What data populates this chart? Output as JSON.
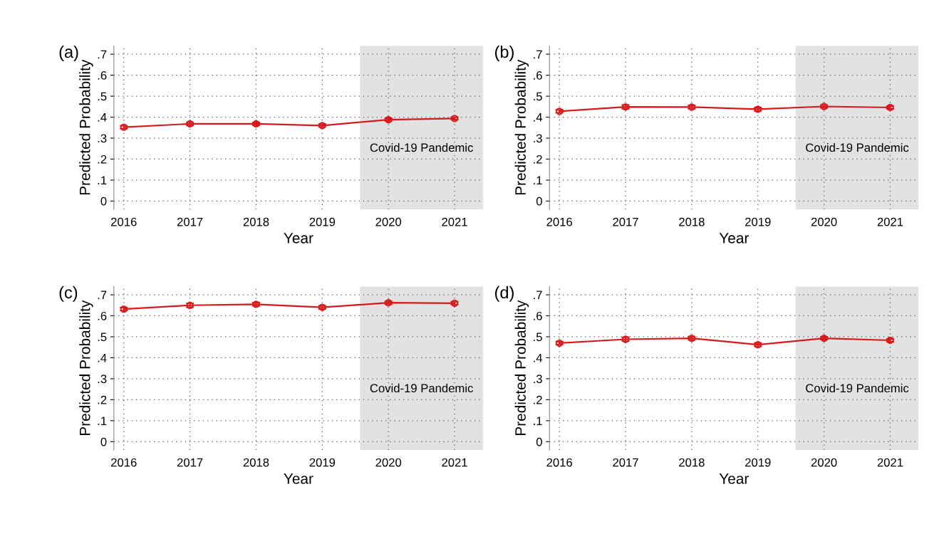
{
  "chart_data": [
    {
      "type": "line",
      "title": "(a)",
      "xlabel": "Year",
      "ylabel": "Predicted Probability",
      "x": [
        2016,
        2017,
        2018,
        2019,
        2020,
        2021
      ],
      "series": [
        {
          "color": "#d7191c",
          "values": [
            0.352,
            0.368,
            0.368,
            0.36,
            0.388,
            0.394
          ],
          "errors": [
            0.007,
            0.008,
            0.007,
            0.007,
            0.007,
            0.006
          ]
        }
      ],
      "xlim": [
        2015.85,
        2021.43
      ],
      "xticks": [
        2016,
        2017,
        2018,
        2019,
        2020,
        2021
      ],
      "ylim": [
        -0.04,
        0.74
      ],
      "yticks": [
        {
          "value": 0,
          "label": "0"
        },
        {
          "value": 0.1,
          "label": ".1"
        },
        {
          "value": 0.2,
          "label": ".2"
        },
        {
          "value": 0.3,
          "label": ".3"
        },
        {
          "value": 0.4,
          "label": ".4"
        },
        {
          "value": 0.5,
          "label": ".5"
        },
        {
          "value": 0.6,
          "label": ".6"
        },
        {
          "value": 0.7,
          "label": ".7"
        }
      ],
      "bands": [
        {
          "axis": "x",
          "from": 2019.57,
          "to": 2021.43,
          "label": "Covid-19 Pandemic",
          "color": "#e1e2e1"
        }
      ],
      "grid": true,
      "marker": "circle",
      "line_style": "solid",
      "legend": false
    },
    {
      "type": "line",
      "title": "(b)",
      "xlabel": "Year",
      "ylabel": "Predicted Probability",
      "x": [
        2016,
        2017,
        2018,
        2019,
        2020,
        2021
      ],
      "series": [
        {
          "color": "#d7191c",
          "values": [
            0.428,
            0.449,
            0.448,
            0.438,
            0.451,
            0.446
          ],
          "errors": [
            0.007,
            0.009,
            0.008,
            0.008,
            0.007,
            0.007
          ]
        }
      ],
      "xlim": [
        2015.85,
        2021.43
      ],
      "xticks": [
        2016,
        2017,
        2018,
        2019,
        2020,
        2021
      ],
      "ylim": [
        -0.04,
        0.74
      ],
      "yticks": [
        {
          "value": 0,
          "label": "0"
        },
        {
          "value": 0.1,
          "label": ".1"
        },
        {
          "value": 0.2,
          "label": ".2"
        },
        {
          "value": 0.3,
          "label": ".3"
        },
        {
          "value": 0.4,
          "label": ".4"
        },
        {
          "value": 0.5,
          "label": ".5"
        },
        {
          "value": 0.6,
          "label": ".6"
        },
        {
          "value": 0.7,
          "label": ".7"
        }
      ],
      "bands": [
        {
          "axis": "x",
          "from": 2019.57,
          "to": 2021.43,
          "label": "Covid-19 Pandemic",
          "color": "#e1e2e1"
        }
      ],
      "grid": true,
      "marker": "circle",
      "line_style": "solid",
      "legend": false
    },
    {
      "type": "line",
      "title": "(c)",
      "xlabel": "Year",
      "ylabel": "Predicted Probability",
      "x": [
        2016,
        2017,
        2018,
        2019,
        2020,
        2021
      ],
      "series": [
        {
          "color": "#d7191c",
          "values": [
            0.632,
            0.65,
            0.655,
            0.64,
            0.662,
            0.66
          ],
          "errors": [
            0.007,
            0.009,
            0.008,
            0.008,
            0.007,
            0.007
          ]
        }
      ],
      "xlim": [
        2015.85,
        2021.43
      ],
      "xticks": [
        2016,
        2017,
        2018,
        2019,
        2020,
        2021
      ],
      "ylim": [
        -0.04,
        0.74
      ],
      "yticks": [
        {
          "value": 0,
          "label": "0"
        },
        {
          "value": 0.1,
          "label": ".1"
        },
        {
          "value": 0.2,
          "label": ".2"
        },
        {
          "value": 0.3,
          "label": ".3"
        },
        {
          "value": 0.4,
          "label": ".4"
        },
        {
          "value": 0.5,
          "label": ".5"
        },
        {
          "value": 0.6,
          "label": ".6"
        },
        {
          "value": 0.7,
          "label": ".7"
        }
      ],
      "bands": [
        {
          "axis": "x",
          "from": 2019.57,
          "to": 2021.43,
          "label": "Covid-19 Pandemic",
          "color": "#e1e2e1"
        }
      ],
      "grid": true,
      "marker": "circle",
      "line_style": "solid",
      "legend": false
    },
    {
      "type": "line",
      "title": "(d)",
      "xlabel": "Year",
      "ylabel": "Predicted Probability",
      "x": [
        2016,
        2017,
        2018,
        2019,
        2020,
        2021
      ],
      "series": [
        {
          "color": "#d7191c",
          "values": [
            0.47,
            0.488,
            0.493,
            0.462,
            0.493,
            0.483
          ],
          "errors": [
            0.007,
            0.009,
            0.008,
            0.008,
            0.007,
            0.007
          ]
        }
      ],
      "xlim": [
        2015.85,
        2021.43
      ],
      "xticks": [
        2016,
        2017,
        2018,
        2019,
        2020,
        2021
      ],
      "ylim": [
        -0.04,
        0.74
      ],
      "yticks": [
        {
          "value": 0,
          "label": "0"
        },
        {
          "value": 0.1,
          "label": ".1"
        },
        {
          "value": 0.2,
          "label": ".2"
        },
        {
          "value": 0.3,
          "label": ".3"
        },
        {
          "value": 0.4,
          "label": ".4"
        },
        {
          "value": 0.5,
          "label": ".5"
        },
        {
          "value": 0.6,
          "label": ".6"
        },
        {
          "value": 0.7,
          "label": ".7"
        }
      ],
      "bands": [
        {
          "axis": "x",
          "from": 2019.57,
          "to": 2021.43,
          "label": "Covid-19 Pandemic",
          "color": "#e1e2e1"
        }
      ],
      "grid": true,
      "marker": "circle",
      "line_style": "solid",
      "legend": false
    }
  ]
}
